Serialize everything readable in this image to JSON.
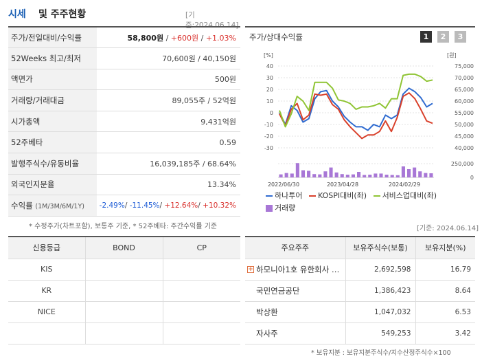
{
  "header": {
    "title_a": "시세",
    "title_b": "및 주주현황",
    "date": "[기준:2024.06.14]"
  },
  "price_rows": [
    {
      "label": "주가/전일대비/수익률",
      "v1": "58,800원",
      "sep1": " / ",
      "v2": "+600원",
      "sep2": " / ",
      "v3": "+1.03%"
    },
    {
      "label": "52Weeks 최고/최저",
      "value": "70,600원 / 40,150원"
    },
    {
      "label": "액면가",
      "value": "500원"
    },
    {
      "label": "거래량/거래대금",
      "value": "89,055주 / 52억원"
    },
    {
      "label": "시가총액",
      "value": "9,431억원"
    },
    {
      "label": "52주베타",
      "value": "0.59"
    },
    {
      "label": "발행주식수/유동비율",
      "value": "16,039,185주 / 68.64%"
    },
    {
      "label": "외국인지분율",
      "value": "13.34%"
    },
    {
      "label": "수익률",
      "label_sub": "(1M/3M/6M/1Y)",
      "r1": "-2.49%",
      "r2": "-11.45%",
      "r3": "+12.64%",
      "r4": "+10.32%"
    }
  ],
  "note1": "* 수정주가(차트포함), 보통주 기준, * 52주베타: 주간수익률 기준",
  "date2": "[기준: 2024.06.14]",
  "chart_title": "주가/상대수익률",
  "pages": [
    "1",
    "2",
    "3"
  ],
  "chart_data": {
    "type": "line",
    "left_unit": "[%]",
    "right_unit": "[원]",
    "left_ticks": [
      "40",
      "30",
      "20",
      "10",
      "0",
      "-10",
      "-20",
      "-30"
    ],
    "right_ticks": [
      "75,000",
      "70,000",
      "65,000",
      "60,000",
      "55,000",
      "50,000",
      "45,000",
      "40,000"
    ],
    "volume_ticks": [
      "250,000",
      "0"
    ],
    "x_labels": [
      "2022/06/30",
      "2023/04/28",
      "2024/02/29"
    ],
    "left_range": [
      -30,
      40
    ],
    "series": [
      {
        "name": "하나투어",
        "color": "#2f6bd0",
        "values": [
          0,
          -10,
          6,
          2,
          -8,
          -5,
          12,
          18,
          19,
          10,
          5,
          -3,
          -8,
          -12,
          -12,
          -15,
          -10,
          -12,
          -2,
          -5,
          -2,
          16,
          21,
          18,
          13,
          5,
          8
        ]
      },
      {
        "name": "KOSPI대비(좌)",
        "color": "#d9402b",
        "values": [
          -1,
          -11,
          3,
          8,
          -6,
          -2,
          16,
          15,
          16,
          7,
          3,
          -6,
          -12,
          -17,
          -22,
          -19,
          -19,
          -16,
          -7,
          -16,
          -4,
          14,
          17,
          12,
          3,
          -7,
          -9
        ]
      },
      {
        "name": "서비스업대비(좌)",
        "color": "#8fc434",
        "values": [
          2,
          -12,
          -1,
          14,
          10,
          2,
          26,
          26,
          26,
          21,
          11,
          10,
          8,
          3,
          5,
          5,
          6,
          8,
          4,
          12,
          12,
          32,
          33,
          33,
          31,
          27,
          28
        ]
      }
    ],
    "volume_legend": "거래량",
    "volume_color": "#a877d6",
    "volume": [
      55000,
      80000,
      70000,
      260000,
      130000,
      120000,
      60000,
      55000,
      110000,
      180000,
      90000,
      60000,
      50000,
      55000,
      100000,
      45000,
      50000,
      70000,
      70000,
      50000,
      45000,
      40000,
      200000,
      150000,
      180000,
      110000,
      80000,
      75000
    ]
  },
  "credit": {
    "headers": [
      "신용등급",
      "BOND",
      "CP"
    ],
    "rows": [
      [
        "KIS",
        "",
        ""
      ],
      [
        "KR",
        "",
        ""
      ],
      [
        "NICE",
        "",
        ""
      ],
      [
        "",
        "",
        ""
      ]
    ]
  },
  "holders": {
    "headers": [
      "주요주주",
      "보유주식수(보통)",
      "보유지분(%)"
    ],
    "rows": [
      {
        "name": "하모니아1호 유한회사 …",
        "shares": "2,692,598",
        "pct": "16.79"
      },
      {
        "name": "국민연금공단",
        "shares": "1,386,423",
        "pct": "8.64"
      },
      {
        "name": "박상환",
        "shares": "1,047,032",
        "pct": "6.53"
      },
      {
        "name": "자사주",
        "shares": "549,253",
        "pct": "3.42"
      }
    ]
  },
  "note2": "* 보유지분 : 보유지분주식수/지수산정주식수×100"
}
